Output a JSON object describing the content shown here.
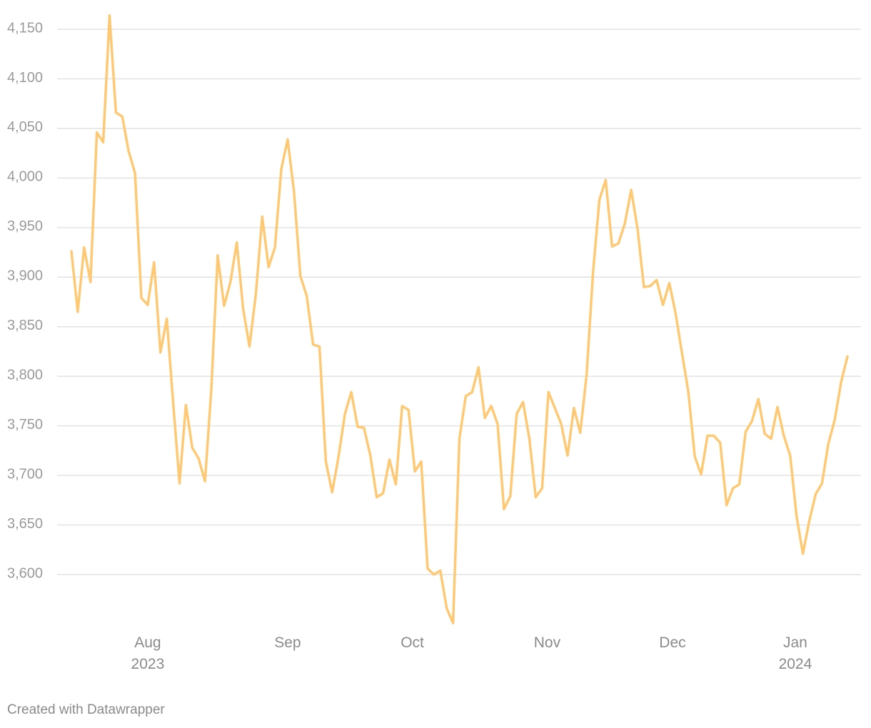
{
  "chart_data": {
    "type": "line",
    "color": "#fdc974",
    "grid": true,
    "values": [
      3926,
      3865,
      3930,
      3895,
      4046,
      4036,
      4164,
      4066,
      4062,
      4027,
      4005,
      3879,
      3872,
      3915,
      3824,
      3858,
      3773,
      3692,
      3771,
      3728,
      3717,
      3694,
      3787,
      3922,
      3871,
      3895,
      3935,
      3868,
      3830,
      3883,
      3961,
      3910,
      3930,
      4009,
      4039,
      3986,
      3901,
      3881,
      3832,
      3830,
      3714,
      3683,
      3719,
      3762,
      3784,
      3749,
      3748,
      3720,
      3678,
      3682,
      3716,
      3691,
      3770,
      3766,
      3704,
      3714,
      3606,
      3600,
      3604,
      3566,
      3551,
      3737,
      3780,
      3784,
      3809,
      3758,
      3770,
      3752,
      3666,
      3679,
      3762,
      3774,
      3737,
      3678,
      3687,
      3784,
      3768,
      3752,
      3720,
      3768,
      3743,
      3802,
      3904,
      3978,
      3998,
      3931,
      3934,
      3954,
      3988,
      3949,
      3890,
      3891,
      3897,
      3872,
      3894,
      3863,
      3823,
      3784,
      3719,
      3701,
      3740,
      3740,
      3733,
      3670,
      3687,
      3691,
      3744,
      3755,
      3777,
      3742,
      3737,
      3769,
      3740,
      3720,
      3659,
      3621,
      3654,
      3681,
      3692,
      3732,
      3756,
      3794,
      3820
    ],
    "ylim": [
      3545,
      4165
    ],
    "yticks": [
      {
        "value": 3600,
        "label": "3,600"
      },
      {
        "value": 3650,
        "label": "3,650"
      },
      {
        "value": 3700,
        "label": "3,700"
      },
      {
        "value": 3750,
        "label": "3,750"
      },
      {
        "value": 3800,
        "label": "3,800"
      },
      {
        "value": 3850,
        "label": "3,850"
      },
      {
        "value": 3900,
        "label": "3,900"
      },
      {
        "value": 3950,
        "label": "3,950"
      },
      {
        "value": 4000,
        "label": "4,000"
      },
      {
        "value": 4050,
        "label": "4,050"
      },
      {
        "value": 4100,
        "label": "4,100"
      },
      {
        "value": 4150,
        "label": "4,150"
      }
    ],
    "xticks": [
      {
        "value": 12,
        "label": "Aug\n2023"
      },
      {
        "value": 34,
        "label": "Sep"
      },
      {
        "value": 53.6,
        "label": "Oct"
      },
      {
        "value": 74.8,
        "label": "Nov"
      },
      {
        "value": 94.5,
        "label": "Dec"
      },
      {
        "value": 113.8,
        "label": "Jan\n2024"
      }
    ],
    "credit": "Created with Datawrapper"
  }
}
